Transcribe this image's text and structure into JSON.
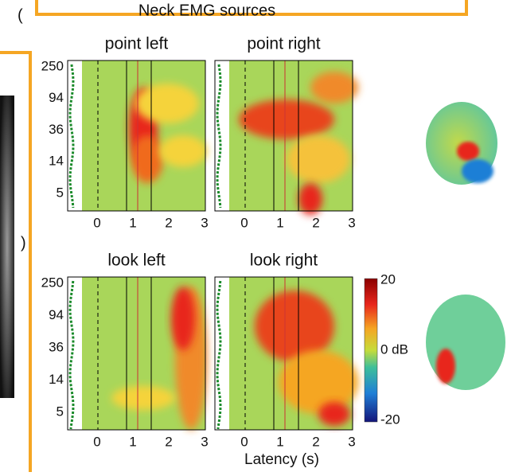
{
  "header": {
    "title": "Neck EMG sources",
    "label_top": "(",
    "label_bottom": ")"
  },
  "rows": [
    {
      "panels": [
        {
          "title": "point left"
        },
        {
          "title": "point right"
        }
      ]
    },
    {
      "panels": [
        {
          "title": "look left"
        },
        {
          "title": "look right"
        }
      ]
    }
  ],
  "y_ticks": [
    "250",
    "94",
    "36",
    "14",
    "5"
  ],
  "x_ticks": [
    "0",
    "1",
    "2",
    "3"
  ],
  "x_axis_label": "Latency (s)",
  "colorbar_ticks": [
    "20",
    "0 dB",
    "-20"
  ]
}
